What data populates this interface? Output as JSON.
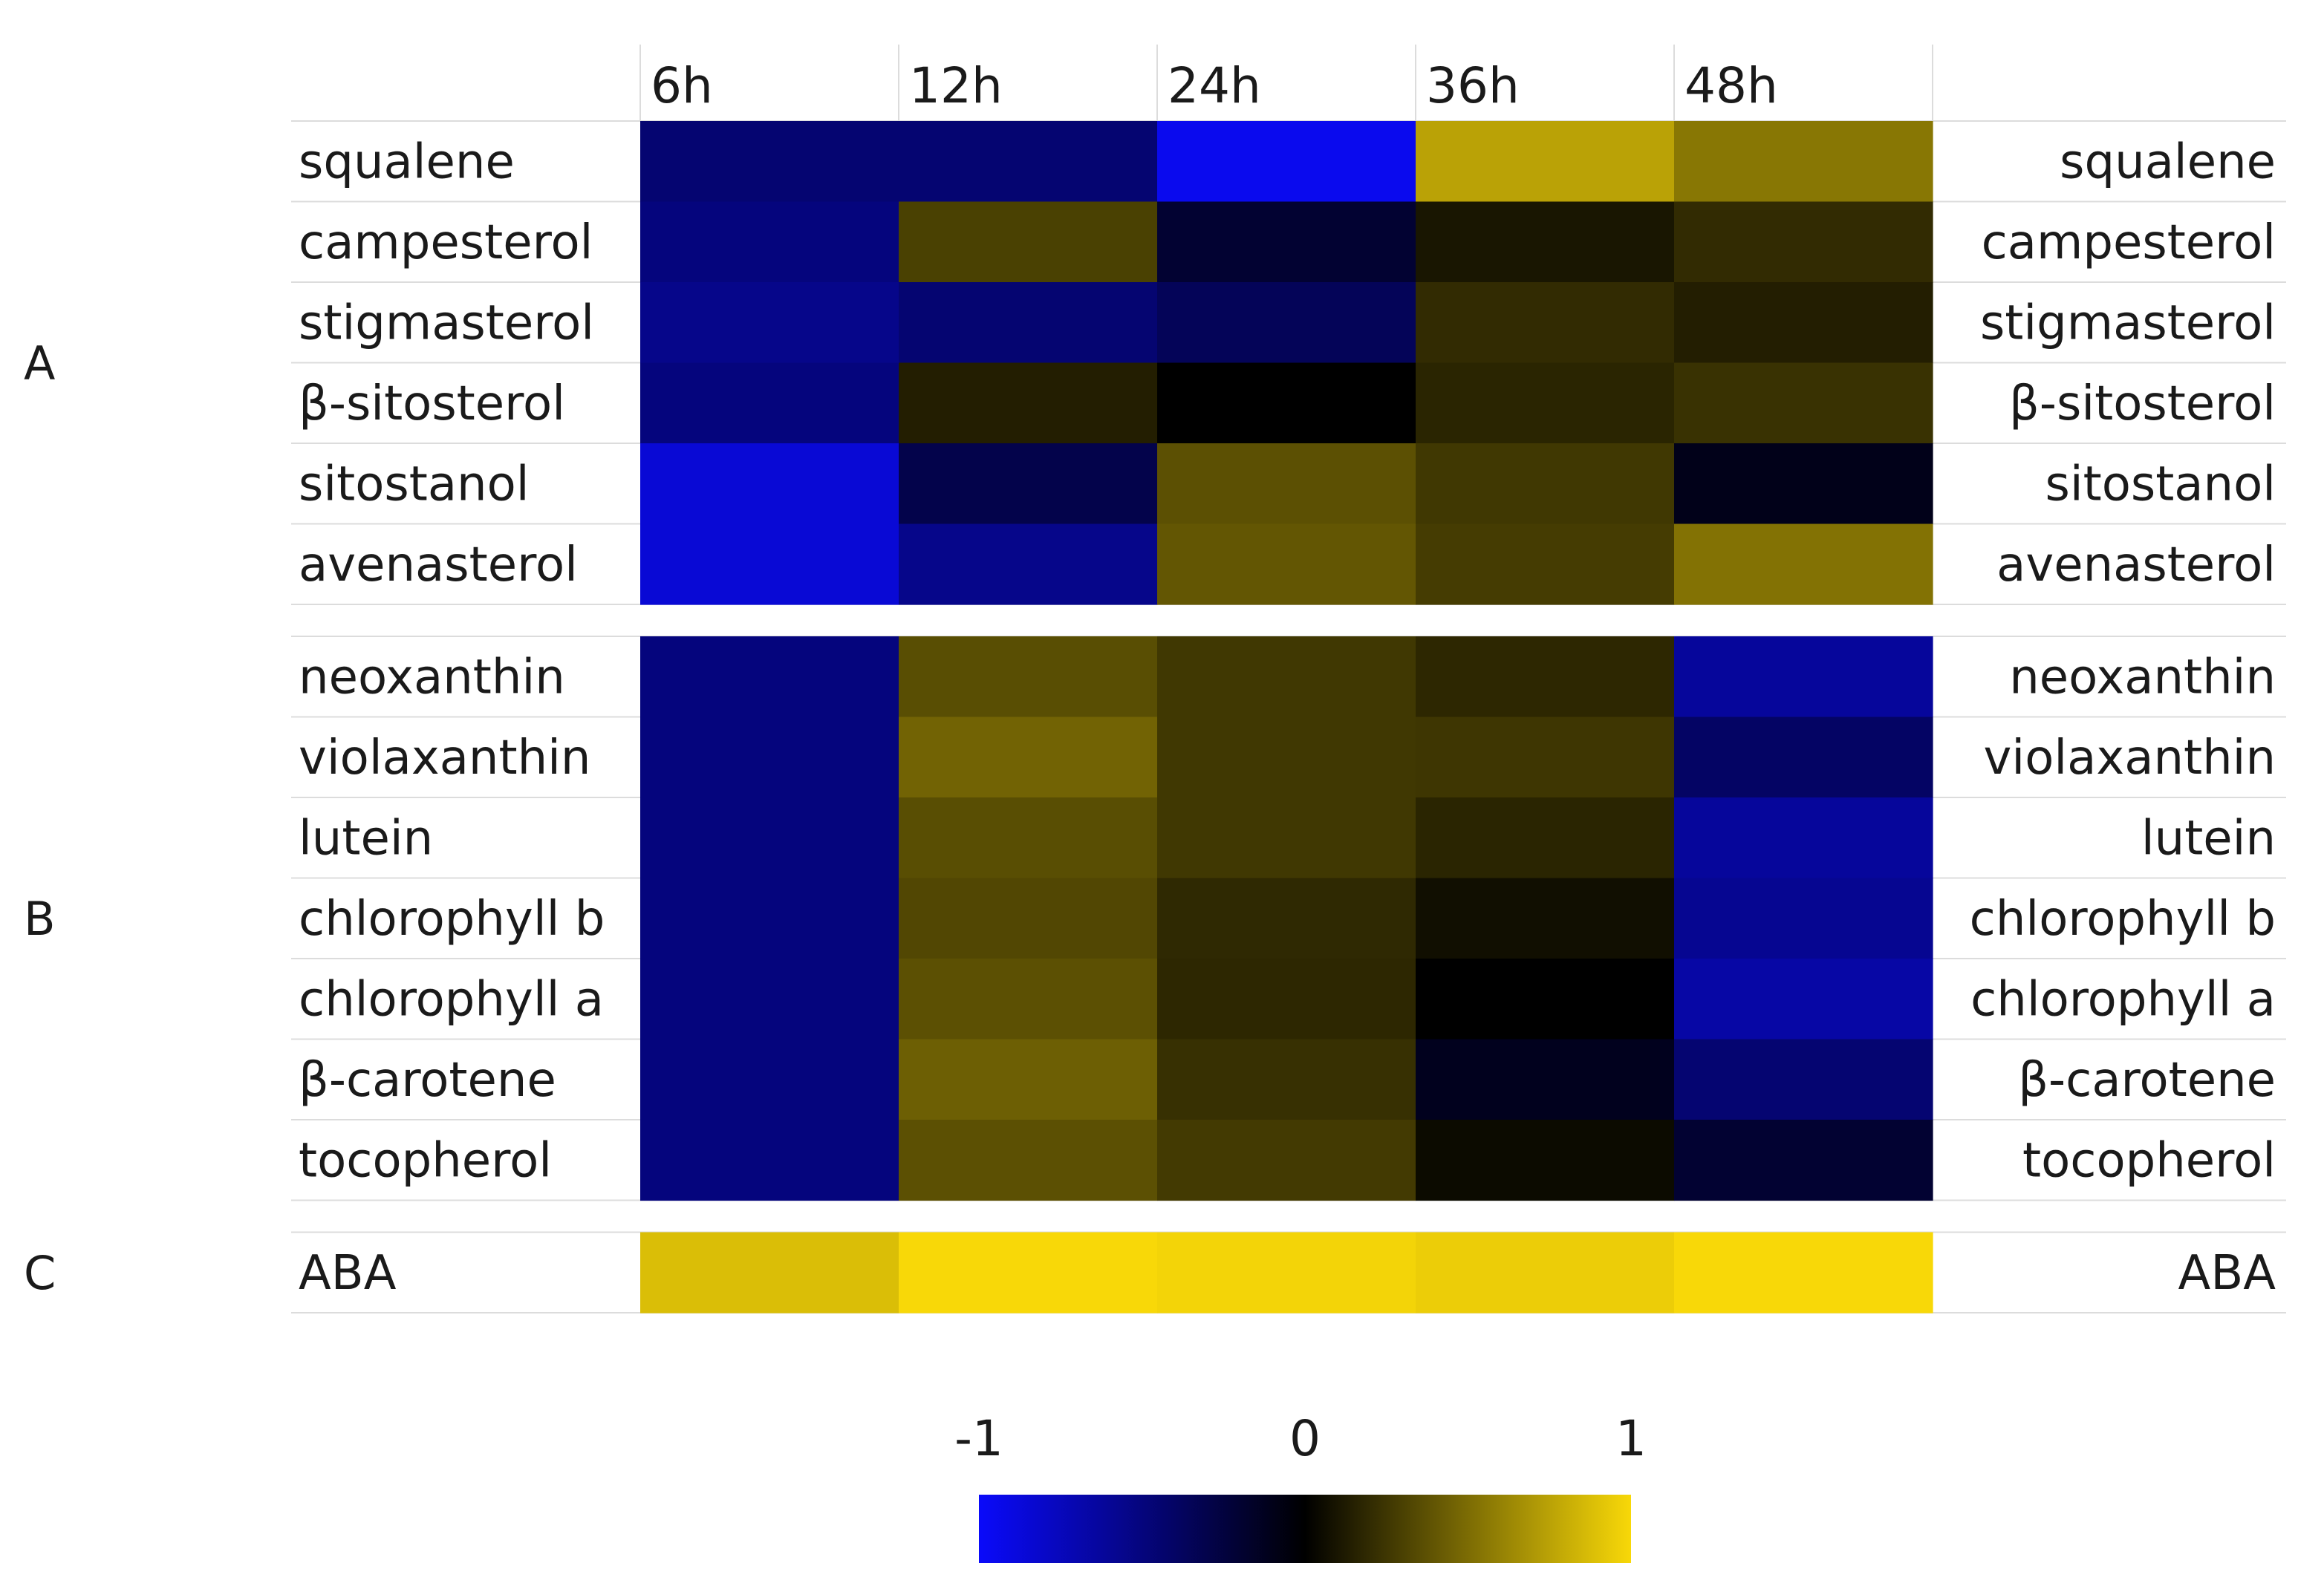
{
  "chart_data": {
    "type": "heatmap",
    "columns": [
      "6h",
      "12h",
      "24h",
      "36h",
      "48h"
    ],
    "color_scale": {
      "min": -1,
      "mid": 0,
      "max": 1,
      "tick_labels": [
        "-1",
        "0",
        "1"
      ],
      "colors": {
        "low": "#0a0afa",
        "mid": "#000000",
        "high": "#f8d808"
      }
    },
    "groups": [
      {
        "label": "A",
        "rows": [
          {
            "name": "squalene",
            "values": [
              -0.45,
              -0.45,
              -0.95,
              0.75,
              0.55
            ]
          },
          {
            "name": "campesterol",
            "values": [
              -0.5,
              0.3,
              -0.2,
              0.1,
              0.2
            ]
          },
          {
            "name": "stigmasterol",
            "values": [
              -0.55,
              -0.45,
              -0.35,
              0.2,
              0.14
            ]
          },
          {
            "name": "β-sitosterol",
            "values": [
              -0.5,
              0.14,
              0.0,
              0.17,
              0.23
            ]
          },
          {
            "name": "sitostanol",
            "values": [
              -0.85,
              -0.3,
              0.37,
              0.26,
              -0.1
            ]
          },
          {
            "name": "avenasterol",
            "values": [
              -0.85,
              -0.55,
              0.4,
              0.28,
              0.53
            ]
          }
        ]
      },
      {
        "label": "B",
        "rows": [
          {
            "name": "neoxanthin",
            "values": [
              -0.5,
              0.36,
              0.26,
              0.18,
              -0.62
            ]
          },
          {
            "name": "violaxanthin",
            "values": [
              -0.5,
              0.46,
              0.26,
              0.25,
              -0.4
            ]
          },
          {
            "name": "lutein",
            "values": [
              -0.5,
              0.36,
              0.26,
              0.17,
              -0.62
            ]
          },
          {
            "name": "chlorophyll b",
            "values": [
              -0.5,
              0.33,
              0.19,
              0.07,
              -0.58
            ]
          },
          {
            "name": "chlorophyll a",
            "values": [
              -0.5,
              0.37,
              0.18,
              0.0,
              -0.66
            ]
          },
          {
            "name": "β-carotene",
            "values": [
              -0.5,
              0.44,
              0.22,
              -0.12,
              -0.45
            ]
          },
          {
            "name": "tocopherol",
            "values": [
              -0.5,
              0.37,
              0.27,
              0.05,
              -0.2
            ]
          }
        ]
      },
      {
        "label": "C",
        "rows": [
          {
            "name": "ABA",
            "values": [
              0.88,
              1.0,
              0.98,
              0.95,
              1.0
            ]
          }
        ]
      }
    ]
  }
}
